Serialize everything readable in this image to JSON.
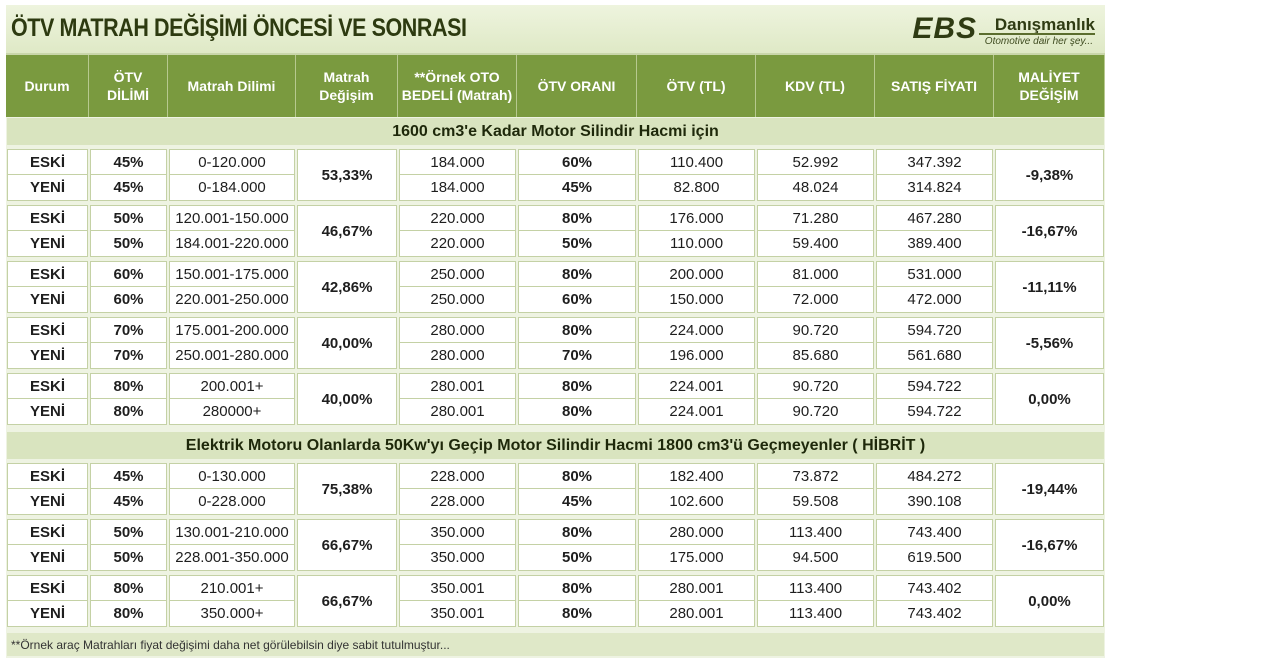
{
  "title": "ÖTV MATRAH DEĞİŞİMİ ÖNCESİ VE SONRASI",
  "logo": {
    "mark": "EBS",
    "name": "Danışmanlık",
    "slogan": "Otomotive dair her şey..."
  },
  "headers": [
    "Durum",
    "ÖTV DİLİMİ",
    "Matrah Dilimi",
    "Matrah Değişim",
    "**Örnek OTO BEDELİ (Matrah)",
    "ÖTV ORANI",
    "ÖTV (TL)",
    "KDV (TL)",
    "SATIŞ FİYATI",
    "MALİYET DEĞİŞİM"
  ],
  "sections": [
    {
      "title": "1600 cm3'e Kadar Motor Silindir Hacmi için",
      "groups": [
        {
          "change": "53,33%",
          "cost": "-9,38%",
          "rows": [
            {
              "state": "ESKİ",
              "slice": "45%",
              "range": "0-120.000",
              "sample": "184.000",
              "rate": "60%",
              "otv": "110.400",
              "kdv": "52.992",
              "price": "347.392"
            },
            {
              "state": "YENİ",
              "slice": "45%",
              "range": "0-184.000",
              "sample": "184.000",
              "rate": "45%",
              "otv": "82.800",
              "kdv": "48.024",
              "price": "314.824"
            }
          ]
        },
        {
          "change": "46,67%",
          "cost": "-16,67%",
          "rows": [
            {
              "state": "ESKİ",
              "slice": "50%",
              "range": "120.001-150.000",
              "sample": "220.000",
              "rate": "80%",
              "otv": "176.000",
              "kdv": "71.280",
              "price": "467.280"
            },
            {
              "state": "YENİ",
              "slice": "50%",
              "range": "184.001-220.000",
              "sample": "220.000",
              "rate": "50%",
              "otv": "110.000",
              "kdv": "59.400",
              "price": "389.400"
            }
          ]
        },
        {
          "change": "42,86%",
          "cost": "-11,11%",
          "rows": [
            {
              "state": "ESKİ",
              "slice": "60%",
              "range": "150.001-175.000",
              "sample": "250.000",
              "rate": "80%",
              "otv": "200.000",
              "kdv": "81.000",
              "price": "531.000"
            },
            {
              "state": "YENİ",
              "slice": "60%",
              "range": "220.001-250.000",
              "sample": "250.000",
              "rate": "60%",
              "otv": "150.000",
              "kdv": "72.000",
              "price": "472.000"
            }
          ]
        },
        {
          "change": "40,00%",
          "cost": "-5,56%",
          "rows": [
            {
              "state": "ESKİ",
              "slice": "70%",
              "range": "175.001-200.000",
              "sample": "280.000",
              "rate": "80%",
              "otv": "224.000",
              "kdv": "90.720",
              "price": "594.720"
            },
            {
              "state": "YENİ",
              "slice": "70%",
              "range": "250.001-280.000",
              "sample": "280.000",
              "rate": "70%",
              "otv": "196.000",
              "kdv": "85.680",
              "price": "561.680"
            }
          ]
        },
        {
          "change": "40,00%",
          "cost": "0,00%",
          "rows": [
            {
              "state": "ESKİ",
              "slice": "80%",
              "range": "200.001+",
              "sample": "280.001",
              "rate": "80%",
              "otv": "224.001",
              "kdv": "90.720",
              "price": "594.722"
            },
            {
              "state": "YENİ",
              "slice": "80%",
              "range": "280000+",
              "sample": "280.001",
              "rate": "80%",
              "otv": "224.001",
              "kdv": "90.720",
              "price": "594.722"
            }
          ]
        }
      ]
    },
    {
      "title": "Elektrik Motoru Olanlarda 50Kw'yı Geçip Motor Silindir Hacmi 1800 cm3'ü Geçmeyenler ( HİBRİT )",
      "groups": [
        {
          "change": "75,38%",
          "cost": "-19,44%",
          "rows": [
            {
              "state": "ESKİ",
              "slice": "45%",
              "range": "0-130.000",
              "sample": "228.000",
              "rate": "80%",
              "otv": "182.400",
              "kdv": "73.872",
              "price": "484.272"
            },
            {
              "state": "YENİ",
              "slice": "45%",
              "range": "0-228.000",
              "sample": "228.000",
              "rate": "45%",
              "otv": "102.600",
              "kdv": "59.508",
              "price": "390.108"
            }
          ]
        },
        {
          "change": "66,67%",
          "cost": "-16,67%",
          "rows": [
            {
              "state": "ESKİ",
              "slice": "50%",
              "range": "130.001-210.000",
              "sample": "350.000",
              "rate": "80%",
              "otv": "280.000",
              "kdv": "113.400",
              "price": "743.400"
            },
            {
              "state": "YENİ",
              "slice": "50%",
              "range": "228.001-350.000",
              "sample": "350.000",
              "rate": "50%",
              "otv": "175.000",
              "kdv": "94.500",
              "price": "619.500"
            }
          ]
        },
        {
          "change": "66,67%",
          "cost": "0,00%",
          "rows": [
            {
              "state": "ESKİ",
              "slice": "80%",
              "range": "210.001+",
              "sample": "350.001",
              "rate": "80%",
              "otv": "280.001",
              "kdv": "113.400",
              "price": "743.402"
            },
            {
              "state": "YENİ",
              "slice": "80%",
              "range": "350.000+",
              "sample": "350.001",
              "rate": "80%",
              "otv": "280.001",
              "kdv": "113.400",
              "price": "743.402"
            }
          ]
        }
      ]
    }
  ],
  "footnote": "**Örnek araç Matrahları fiyat değişimi daha net görülebilsin diye sabit tutulmuştur..."
}
